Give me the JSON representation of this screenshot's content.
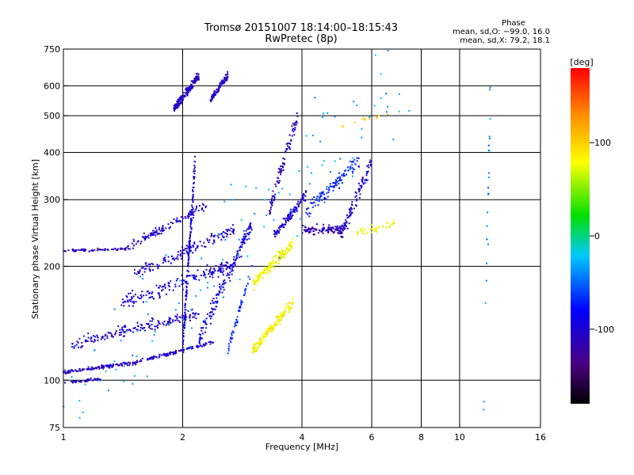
{
  "chart_data": {
    "type": "scatter",
    "title": "Tromsø 20151007 18:14:00–18:15:43",
    "subtitle": "RwPretec (8p)",
    "xlabel": "Frequency [MHz]",
    "ylabel": "Stationary phase Virtual Height [km]",
    "x_scale": "log",
    "y_scale": "log",
    "xlim": [
      1,
      16
    ],
    "ylim": [
      75,
      750
    ],
    "x_ticks": [
      1,
      2,
      4,
      6,
      8,
      10,
      16
    ],
    "y_ticks": [
      75,
      100,
      200,
      300,
      400,
      500,
      600,
      750
    ],
    "grid": true,
    "phase_stats": {
      "heading": "Phase",
      "line_o": "mean, sd,O: −99.0, 16.0",
      "line_x": "mean, sd,X:  79.2, 18.1"
    },
    "colorbar": {
      "label": "[deg]",
      "range": [
        -180,
        180
      ],
      "ticks": [
        100,
        0,
        -100
      ],
      "colors": [
        "#000000",
        "#4b0082",
        "#0000ff",
        "#00c8ff",
        "#00e000",
        "#ffff00",
        "#ff8c00",
        "#ff0000"
      ]
    },
    "series": [
      {
        "segments": [
          {
            "x": [
              1.0,
              1.5
            ],
            "h": [
              105,
              111
            ],
            "spread": 0.015,
            "phase": -105,
            "n": 120
          },
          {
            "x": [
              1.5,
              2.4
            ],
            "h": [
              111,
              126
            ],
            "spread": 0.015,
            "phase": -100,
            "n": 110
          },
          {
            "x": [
              1.0,
              1.25
            ],
            "h": [
              98,
              101
            ],
            "spread": 0.012,
            "phase": -105,
            "n": 40
          },
          {
            "x": [
              1.05,
              2.2
            ],
            "h": [
              125,
              150
            ],
            "spread": 0.05,
            "phase": -100,
            "n": 180
          },
          {
            "x": [
              1.4,
              2.6
            ],
            "h": [
              160,
              200
            ],
            "spread": 0.06,
            "phase": -95,
            "n": 160
          },
          {
            "x": [
              1.5,
              2.7
            ],
            "h": [
              190,
              250
            ],
            "spread": 0.05,
            "phase": -100,
            "n": 140
          },
          {
            "x": [
              1.0,
              1.45
            ],
            "h": [
              220,
              222
            ],
            "spread": 0.012,
            "phase": -105,
            "n": 70
          },
          {
            "x": [
              1.45,
              2.3
            ],
            "h": [
              225,
              290
            ],
            "spread": 0.04,
            "phase": -100,
            "n": 110
          },
          {
            "x": [
              2.0,
              2.15
            ],
            "h": [
              120,
              380
            ],
            "spread": 0.1,
            "phase": -95,
            "n": 150
          },
          {
            "x": [
              1.9,
              2.2
            ],
            "h": [
              520,
              640
            ],
            "spread": 0.035,
            "phase": -105,
            "n": 170
          },
          {
            "x": [
              2.35,
              2.6
            ],
            "h": [
              550,
              640
            ],
            "spread": 0.03,
            "phase": -105,
            "n": 90
          },
          {
            "x": [
              2.2,
              3.0
            ],
            "h": [
              130,
              260
            ],
            "spread": 0.08,
            "phase": -90,
            "n": 170
          },
          {
            "x": [
              2.6,
              3.0
            ],
            "h": [
              120,
              200
            ],
            "spread": 0.04,
            "phase": -65,
            "n": 60
          },
          {
            "x": [
              3.0,
              3.8
            ],
            "h": [
              120,
              160
            ],
            "spread": 0.05,
            "phase": 85,
            "n": 150
          },
          {
            "x": [
              3.0,
              3.8
            ],
            "h": [
              180,
              230
            ],
            "spread": 0.05,
            "phase": 80,
            "n": 150
          },
          {
            "x": [
              3.3,
              3.9
            ],
            "h": [
              280,
              500
            ],
            "spread": 0.08,
            "phase": -110,
            "n": 90
          },
          {
            "x": [
              3.4,
              4.1
            ],
            "h": [
              240,
              310
            ],
            "spread": 0.04,
            "phase": -100,
            "n": 110
          },
          {
            "x": [
              4.0,
              5.1
            ],
            "h": [
              250,
              250
            ],
            "spread": 0.04,
            "phase": -110,
            "n": 100
          },
          {
            "x": [
              4.1,
              5.6
            ],
            "h": [
              280,
              380
            ],
            "spread": 0.06,
            "phase": -70,
            "n": 110
          },
          {
            "x": [
              5.0,
              6.0
            ],
            "h": [
              240,
              380
            ],
            "spread": 0.07,
            "phase": -100,
            "n": 100
          },
          {
            "x": [
              5.5,
              6.9
            ],
            "h": [
              245,
              260
            ],
            "spread": 0.03,
            "phase": 80,
            "n": 40
          },
          {
            "x": [
              5.0,
              6.7
            ],
            "h": [
              470,
              510
            ],
            "spread": 0.03,
            "phase": 95,
            "n": 12
          },
          {
            "x": [
              11.5,
              12.0
            ],
            "h": [
              90,
              650
            ],
            "spread": 0.3,
            "phase": -40,
            "n": 22
          },
          {
            "x": [
              1.0,
              8.0
            ],
            "h": [
              90,
              700
            ],
            "spread": 0.6,
            "phase": -30,
            "n": 120
          }
        ]
      }
    ]
  }
}
